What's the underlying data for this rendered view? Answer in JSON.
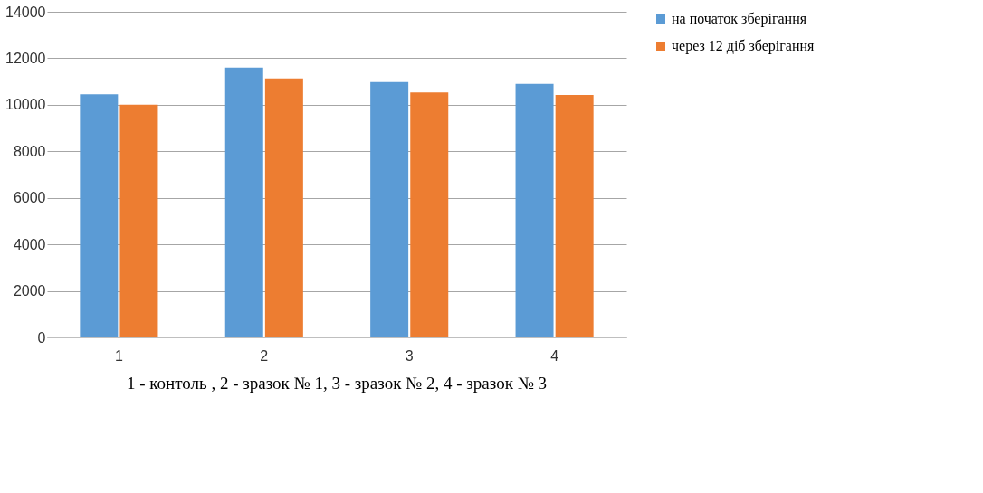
{
  "chart_data": {
    "type": "bar",
    "categories": [
      "1",
      "2",
      "3",
      "4"
    ],
    "series": [
      {
        "name": "на початок зберігання",
        "color": "#5b9bd5",
        "values": [
          10450,
          11600,
          10980,
          10900
        ]
      },
      {
        "name": "через 12 діб зберігання",
        "color": "#ed7d31",
        "values": [
          10000,
          11130,
          10530,
          10420
        ]
      }
    ],
    "ylim": [
      0,
      14000
    ],
    "yticks": [
      0,
      2000,
      4000,
      6000,
      8000,
      10000,
      12000,
      14000
    ],
    "grid": "y",
    "legend": "right",
    "annotations": [
      "1 - контоль , 2 - зразок № 1, 3 - зразок № 2,  4 - зразок № 3"
    ]
  }
}
